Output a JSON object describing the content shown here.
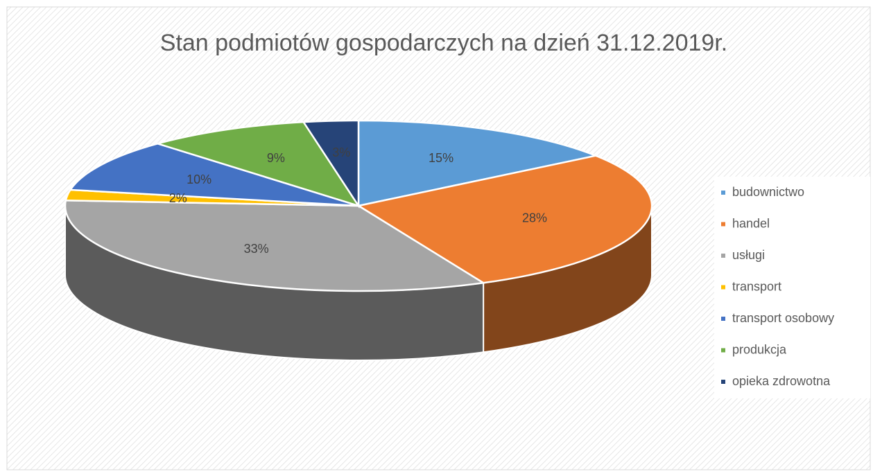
{
  "chart_data": {
    "type": "pie3d",
    "title": "Stan podmiotów gospodarczych na dzień 31.12.2019r.",
    "categories": [
      "budownictwo",
      "handel",
      "usługi",
      "transport",
      "transport osobowy",
      "produkcja",
      "opieka zdrowotna"
    ],
    "values": [
      15,
      28,
      33,
      2,
      10,
      9,
      3
    ],
    "value_labels": [
      "15%",
      "28%",
      "33%",
      "2%",
      "10%",
      "9%",
      "3%"
    ],
    "colors": [
      "#5b9bd5",
      "#ed7d31",
      "#a5a5a5",
      "#ffc000",
      "#4472c4",
      "#70ad47",
      "#264478"
    ],
    "legend": "right"
  }
}
